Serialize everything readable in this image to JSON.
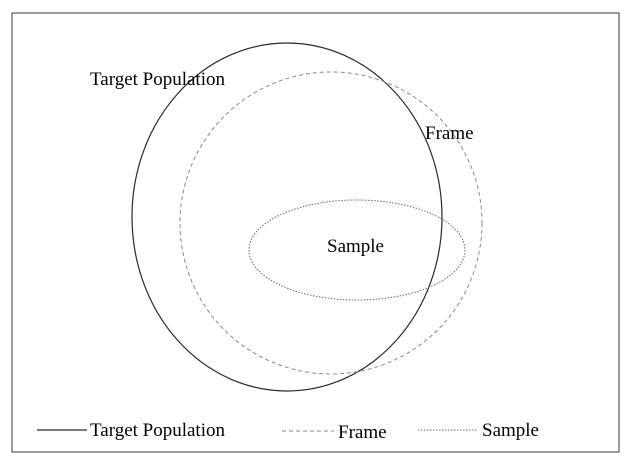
{
  "diagram": {
    "labels": {
      "target_population": "Target Population",
      "frame": "Frame",
      "sample": "Sample"
    },
    "legend": {
      "target_population": "Target Population",
      "frame": "Frame",
      "sample": "Sample"
    },
    "styles": {
      "target_population": "solid",
      "frame": "dashed",
      "sample": "dotted"
    },
    "colors": {
      "border": "#3a3a3a",
      "target_population": "#2a2a2a",
      "frame": "#8a8a8a",
      "sample": "#6a6a6a"
    }
  }
}
